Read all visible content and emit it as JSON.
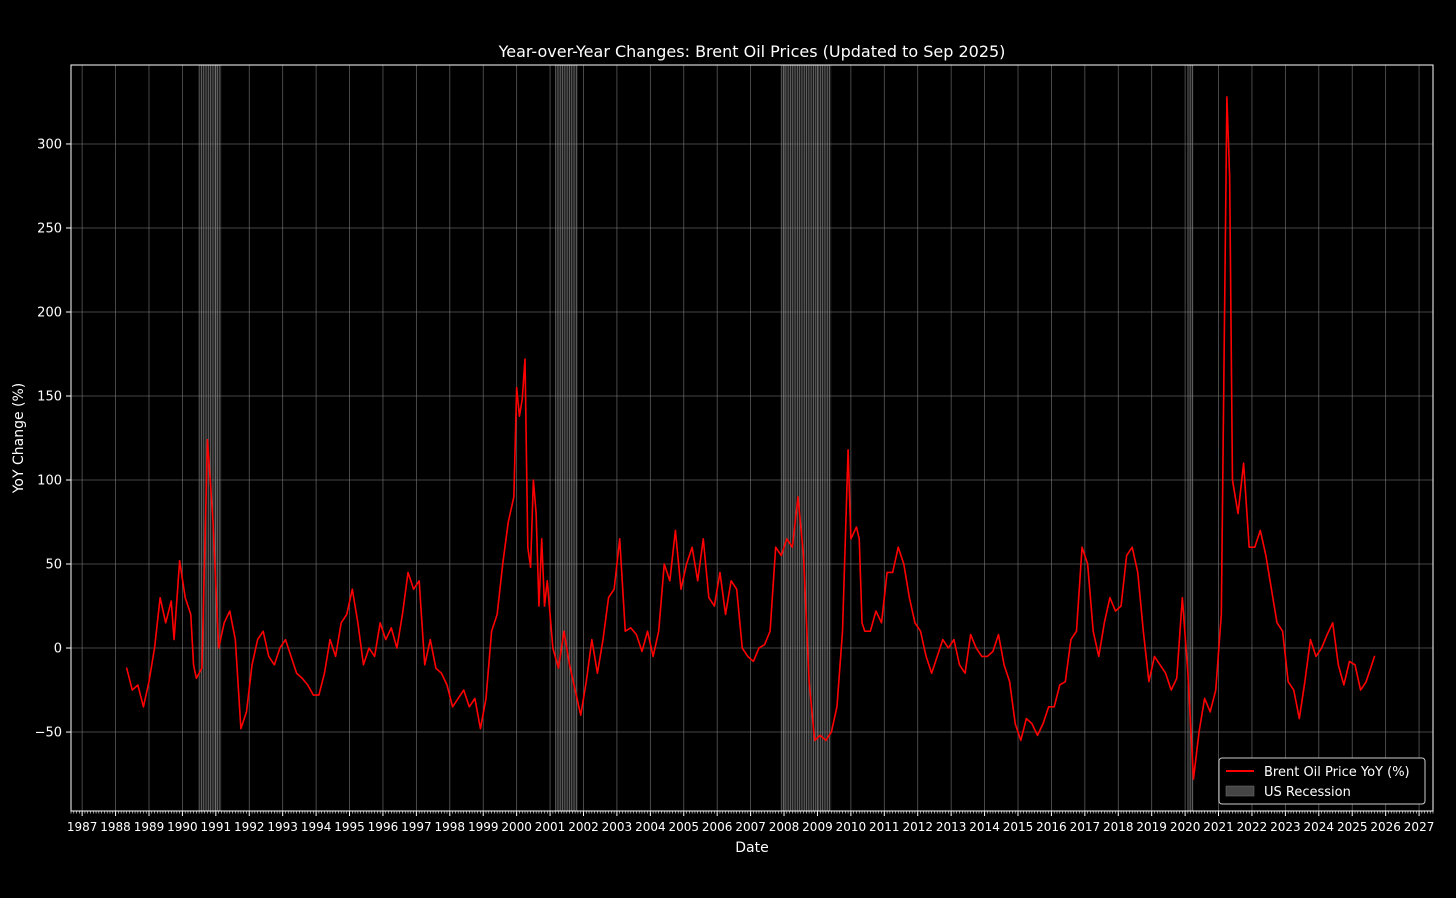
{
  "chart_data": {
    "type": "line",
    "title": "Year-over-Year Changes: Brent Oil Prices (Updated to Sep 2025)",
    "xlabel": "Date",
    "ylabel": "YoY Change (%)",
    "xlim": [
      "1986-09",
      "2027-06"
    ],
    "ylim": [
      -97,
      347
    ],
    "x_ticks": [
      "1987",
      "1988",
      "1989",
      "1990",
      "1991",
      "1992",
      "1993",
      "1994",
      "1995",
      "1996",
      "1997",
      "1998",
      "1999",
      "2000",
      "2001",
      "2002",
      "2003",
      "2004",
      "2005",
      "2006",
      "2007",
      "2008",
      "2009",
      "2010",
      "2011",
      "2012",
      "2013",
      "2014",
      "2015",
      "2016",
      "2017",
      "2018",
      "2019",
      "2020",
      "2021",
      "2022",
      "2023",
      "2024",
      "2025",
      "2026",
      "2027"
    ],
    "y_ticks": [
      -50,
      0,
      50,
      100,
      150,
      200,
      250,
      300
    ],
    "y_tick_labels": [
      "−50",
      "0",
      "50",
      "100",
      "150",
      "200",
      "250",
      "300"
    ],
    "grid": true,
    "legend": {
      "placement": "bottom-right",
      "entries": [
        "Brent Oil Price YoY (%)",
        "US Recession"
      ]
    },
    "colors": {
      "background": "#000000",
      "line": "#ff0000",
      "grid": "#808080",
      "recession": "#9a9a9a",
      "text": "#ffffff"
    },
    "recessions": [
      {
        "start": "1990-07",
        "end": "1991-03"
      },
      {
        "start": "2001-03",
        "end": "2001-11"
      },
      {
        "start": "2007-12",
        "end": "2009-06"
      },
      {
        "start": "2020-02",
        "end": "2020-04"
      }
    ],
    "series": [
      {
        "name": "Brent Oil Price YoY (%)",
        "points": [
          [
            "1988-05",
            -12
          ],
          [
            "1988-07",
            -25
          ],
          [
            "1988-09",
            -22
          ],
          [
            "1988-11",
            -35
          ],
          [
            "1989-01",
            -20
          ],
          [
            "1989-03",
            0
          ],
          [
            "1989-05",
            30
          ],
          [
            "1989-07",
            15
          ],
          [
            "1989-09",
            28
          ],
          [
            "1989-10",
            5
          ],
          [
            "1989-12",
            52
          ],
          [
            "1990-02",
            30
          ],
          [
            "1990-04",
            20
          ],
          [
            "1990-05",
            -10
          ],
          [
            "1990-06",
            -18
          ],
          [
            "1990-08",
            -12
          ],
          [
            "1990-10",
            124
          ],
          [
            "1990-12",
            75
          ],
          [
            "1991-02",
            0
          ],
          [
            "1991-04",
            15
          ],
          [
            "1991-06",
            22
          ],
          [
            "1991-08",
            5
          ],
          [
            "1991-10",
            -48
          ],
          [
            "1991-12",
            -38
          ],
          [
            "1992-02",
            -10
          ],
          [
            "1992-04",
            5
          ],
          [
            "1992-06",
            10
          ],
          [
            "1992-08",
            -5
          ],
          [
            "1992-10",
            -10
          ],
          [
            "1992-12",
            0
          ],
          [
            "1993-02",
            5
          ],
          [
            "1993-04",
            -5
          ],
          [
            "1993-06",
            -15
          ],
          [
            "1993-08",
            -18
          ],
          [
            "1993-10",
            -22
          ],
          [
            "1993-12",
            -28
          ],
          [
            "1994-02",
            -28
          ],
          [
            "1994-04",
            -15
          ],
          [
            "1994-06",
            5
          ],
          [
            "1994-08",
            -5
          ],
          [
            "1994-10",
            15
          ],
          [
            "1994-12",
            20
          ],
          [
            "1995-02",
            35
          ],
          [
            "1995-04",
            15
          ],
          [
            "1995-06",
            -10
          ],
          [
            "1995-08",
            0
          ],
          [
            "1995-10",
            -5
          ],
          [
            "1995-12",
            15
          ],
          [
            "1996-02",
            5
          ],
          [
            "1996-04",
            12
          ],
          [
            "1996-06",
            0
          ],
          [
            "1996-08",
            20
          ],
          [
            "1996-10",
            45
          ],
          [
            "1996-12",
            35
          ],
          [
            "1997-02",
            40
          ],
          [
            "1997-04",
            -10
          ],
          [
            "1997-06",
            5
          ],
          [
            "1997-08",
            -12
          ],
          [
            "1997-10",
            -15
          ],
          [
            "1997-12",
            -22
          ],
          [
            "1998-02",
            -35
          ],
          [
            "1998-04",
            -30
          ],
          [
            "1998-06",
            -25
          ],
          [
            "1998-08",
            -35
          ],
          [
            "1998-10",
            -30
          ],
          [
            "1998-12",
            -48
          ],
          [
            "1999-02",
            -30
          ],
          [
            "1999-04",
            10
          ],
          [
            "1999-06",
            20
          ],
          [
            "1999-08",
            50
          ],
          [
            "1999-10",
            75
          ],
          [
            "1999-12",
            90
          ],
          [
            "2000-01",
            155
          ],
          [
            "2000-02",
            138
          ],
          [
            "2000-03",
            148
          ],
          [
            "2000-04",
            172
          ],
          [
            "2000-05",
            60
          ],
          [
            "2000-06",
            48
          ],
          [
            "2000-07",
            100
          ],
          [
            "2000-08",
            80
          ],
          [
            "2000-09",
            25
          ],
          [
            "2000-10",
            65
          ],
          [
            "2000-11",
            25
          ],
          [
            "2000-12",
            40
          ],
          [
            "2001-02",
            0
          ],
          [
            "2001-04",
            -12
          ],
          [
            "2001-06",
            10
          ],
          [
            "2001-08",
            -10
          ],
          [
            "2001-10",
            -25
          ],
          [
            "2001-12",
            -40
          ],
          [
            "2002-02",
            -20
          ],
          [
            "2002-04",
            5
          ],
          [
            "2002-06",
            -15
          ],
          [
            "2002-08",
            5
          ],
          [
            "2002-10",
            30
          ],
          [
            "2002-12",
            35
          ],
          [
            "2003-02",
            65
          ],
          [
            "2003-04",
            10
          ],
          [
            "2003-06",
            12
          ],
          [
            "2003-08",
            8
          ],
          [
            "2003-10",
            -2
          ],
          [
            "2003-12",
            10
          ],
          [
            "2004-02",
            -5
          ],
          [
            "2004-04",
            10
          ],
          [
            "2004-06",
            50
          ],
          [
            "2004-08",
            40
          ],
          [
            "2004-10",
            70
          ],
          [
            "2004-12",
            35
          ],
          [
            "2005-02",
            50
          ],
          [
            "2005-04",
            60
          ],
          [
            "2005-06",
            40
          ],
          [
            "2005-08",
            65
          ],
          [
            "2005-10",
            30
          ],
          [
            "2005-12",
            25
          ],
          [
            "2006-02",
            45
          ],
          [
            "2006-04",
            20
          ],
          [
            "2006-06",
            40
          ],
          [
            "2006-08",
            35
          ],
          [
            "2006-10",
            0
          ],
          [
            "2006-12",
            -5
          ],
          [
            "2007-02",
            -8
          ],
          [
            "2007-04",
            0
          ],
          [
            "2007-06",
            2
          ],
          [
            "2007-08",
            10
          ],
          [
            "2007-10",
            60
          ],
          [
            "2007-12",
            55
          ],
          [
            "2008-02",
            65
          ],
          [
            "2008-04",
            60
          ],
          [
            "2008-06",
            90
          ],
          [
            "2008-08",
            55
          ],
          [
            "2008-10",
            -20
          ],
          [
            "2008-12",
            -55
          ],
          [
            "2009-02",
            -52
          ],
          [
            "2009-04",
            -55
          ],
          [
            "2009-06",
            -50
          ],
          [
            "2009-08",
            -35
          ],
          [
            "2009-10",
            10
          ],
          [
            "2009-12",
            118
          ],
          [
            "2010-01",
            65
          ],
          [
            "2010-03",
            72
          ],
          [
            "2010-04",
            65
          ],
          [
            "2010-05",
            15
          ],
          [
            "2010-06",
            10
          ],
          [
            "2010-08",
            10
          ],
          [
            "2010-10",
            22
          ],
          [
            "2010-12",
            15
          ],
          [
            "2011-02",
            45
          ],
          [
            "2011-04",
            45
          ],
          [
            "2011-06",
            60
          ],
          [
            "2011-08",
            50
          ],
          [
            "2011-10",
            30
          ],
          [
            "2011-12",
            15
          ],
          [
            "2012-02",
            10
          ],
          [
            "2012-04",
            -5
          ],
          [
            "2012-06",
            -15
          ],
          [
            "2012-08",
            -5
          ],
          [
            "2012-10",
            5
          ],
          [
            "2012-12",
            0
          ],
          [
            "2013-02",
            5
          ],
          [
            "2013-04",
            -10
          ],
          [
            "2013-06",
            -15
          ],
          [
            "2013-08",
            8
          ],
          [
            "2013-10",
            0
          ],
          [
            "2013-12",
            -5
          ],
          [
            "2014-02",
            -5
          ],
          [
            "2014-04",
            -2
          ],
          [
            "2014-06",
            8
          ],
          [
            "2014-08",
            -10
          ],
          [
            "2014-10",
            -20
          ],
          [
            "2014-12",
            -45
          ],
          [
            "2015-02",
            -55
          ],
          [
            "2015-04",
            -42
          ],
          [
            "2015-06",
            -45
          ],
          [
            "2015-08",
            -52
          ],
          [
            "2015-10",
            -45
          ],
          [
            "2015-12",
            -35
          ],
          [
            "2016-02",
            -35
          ],
          [
            "2016-04",
            -22
          ],
          [
            "2016-06",
            -20
          ],
          [
            "2016-08",
            5
          ],
          [
            "2016-10",
            10
          ],
          [
            "2016-12",
            60
          ],
          [
            "2017-02",
            50
          ],
          [
            "2017-04",
            10
          ],
          [
            "2017-06",
            -5
          ],
          [
            "2017-08",
            15
          ],
          [
            "2017-10",
            30
          ],
          [
            "2017-12",
            22
          ],
          [
            "2018-02",
            25
          ],
          [
            "2018-04",
            55
          ],
          [
            "2018-06",
            60
          ],
          [
            "2018-08",
            45
          ],
          [
            "2018-10",
            10
          ],
          [
            "2018-12",
            -20
          ],
          [
            "2019-02",
            -5
          ],
          [
            "2019-04",
            -10
          ],
          [
            "2019-06",
            -15
          ],
          [
            "2019-08",
            -25
          ],
          [
            "2019-10",
            -18
          ],
          [
            "2019-12",
            30
          ],
          [
            "2020-02",
            -15
          ],
          [
            "2020-04",
            -78
          ],
          [
            "2020-06",
            -50
          ],
          [
            "2020-08",
            -30
          ],
          [
            "2020-10",
            -38
          ],
          [
            "2020-12",
            -25
          ],
          [
            "2021-02",
            20
          ],
          [
            "2021-04",
            328
          ],
          [
            "2021-05",
            280
          ],
          [
            "2021-06",
            100
          ],
          [
            "2021-08",
            80
          ],
          [
            "2021-10",
            110
          ],
          [
            "2021-12",
            60
          ],
          [
            "2022-02",
            60
          ],
          [
            "2022-04",
            70
          ],
          [
            "2022-06",
            55
          ],
          [
            "2022-08",
            35
          ],
          [
            "2022-10",
            15
          ],
          [
            "2022-12",
            10
          ],
          [
            "2023-02",
            -20
          ],
          [
            "2023-04",
            -25
          ],
          [
            "2023-06",
            -42
          ],
          [
            "2023-08",
            -20
          ],
          [
            "2023-10",
            5
          ],
          [
            "2023-12",
            -5
          ],
          [
            "2024-02",
            0
          ],
          [
            "2024-04",
            8
          ],
          [
            "2024-06",
            15
          ],
          [
            "2024-08",
            -10
          ],
          [
            "2024-10",
            -22
          ],
          [
            "2024-12",
            -8
          ],
          [
            "2025-02",
            -10
          ],
          [
            "2025-04",
            -25
          ],
          [
            "2025-06",
            -20
          ],
          [
            "2025-08",
            -10
          ],
          [
            "2025-09",
            -5
          ]
        ]
      }
    ]
  }
}
